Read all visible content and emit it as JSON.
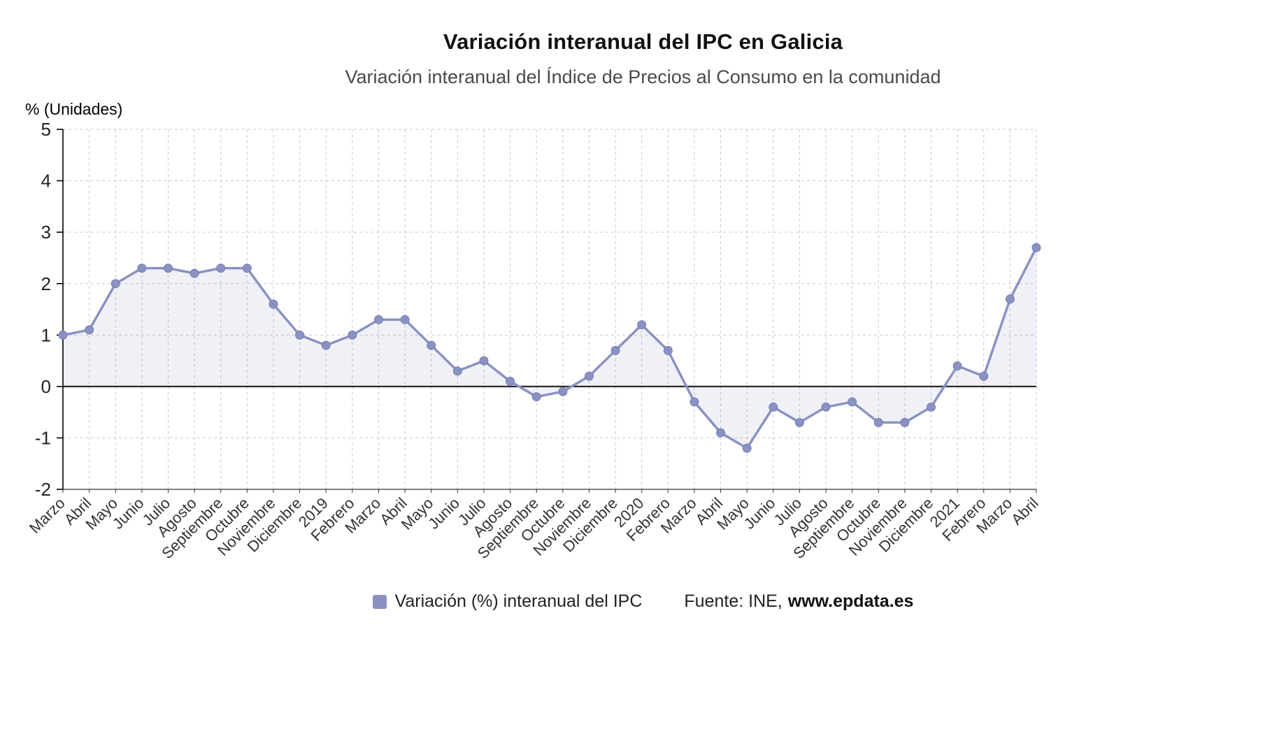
{
  "chart_data": {
    "type": "line",
    "title": "Variación interanual del IPC en Galicia",
    "subtitle": "Variación interanual del Índice de Precios al Consumo en la comunidad",
    "ylabel": "% (Unidades)",
    "xlabel": "",
    "ylim": [
      -2,
      5
    ],
    "ytick_step": 1,
    "grid": true,
    "grid_style": "dashed",
    "area_fill_threshold": 0,
    "legend_position": "bottom",
    "categories": [
      "Marzo",
      "Abril",
      "Mayo",
      "Junio",
      "Julio",
      "Agosto",
      "Septiembre",
      "Octubre",
      "Noviembre",
      "Diciembre",
      "2019",
      "Febrero",
      "Marzo",
      "Abril",
      "Mayo",
      "Junio",
      "Julio",
      "Agosto",
      "Septiembre",
      "Octubre",
      "Noviembre",
      "Diciembre",
      "2020",
      "Febrero",
      "Marzo",
      "Abril",
      "Mayo",
      "Junio",
      "Julio",
      "Agosto",
      "Septiembre",
      "Octubre",
      "Noviembre",
      "Diciembre",
      "2021",
      "Febrero",
      "Marzo",
      "Abril"
    ],
    "series": [
      {
        "name": "Variación (%) interanual del IPC",
        "values": [
          1.0,
          1.1,
          2.0,
          2.3,
          2.3,
          2.2,
          2.3,
          2.3,
          1.6,
          1.0,
          0.8,
          1.0,
          1.3,
          1.3,
          0.8,
          0.3,
          0.5,
          0.1,
          -0.2,
          -0.1,
          0.2,
          0.7,
          1.2,
          0.7,
          -0.3,
          -0.9,
          -1.2,
          -0.4,
          -0.7,
          -0.4,
          -0.3,
          -0.7,
          -0.7,
          -0.4,
          0.4,
          0.2,
          1.7,
          2.7
        ]
      }
    ],
    "colors": {
      "line": "#8a92c3",
      "marker": "#8a92c3",
      "marker_edge": "#767fb2",
      "area_fill": "rgba(139,147,197,0.13)",
      "zero_line": "#2b2b2b",
      "grid": "#c9c9c9",
      "axis": "#000000",
      "tick_label": "#222222"
    }
  },
  "legend": {
    "label": "Variación (%) interanual del IPC",
    "swatch_color": "#8a92c3"
  },
  "source": {
    "prefix": "Fuente: INE,",
    "site": "www.epdata.es"
  }
}
